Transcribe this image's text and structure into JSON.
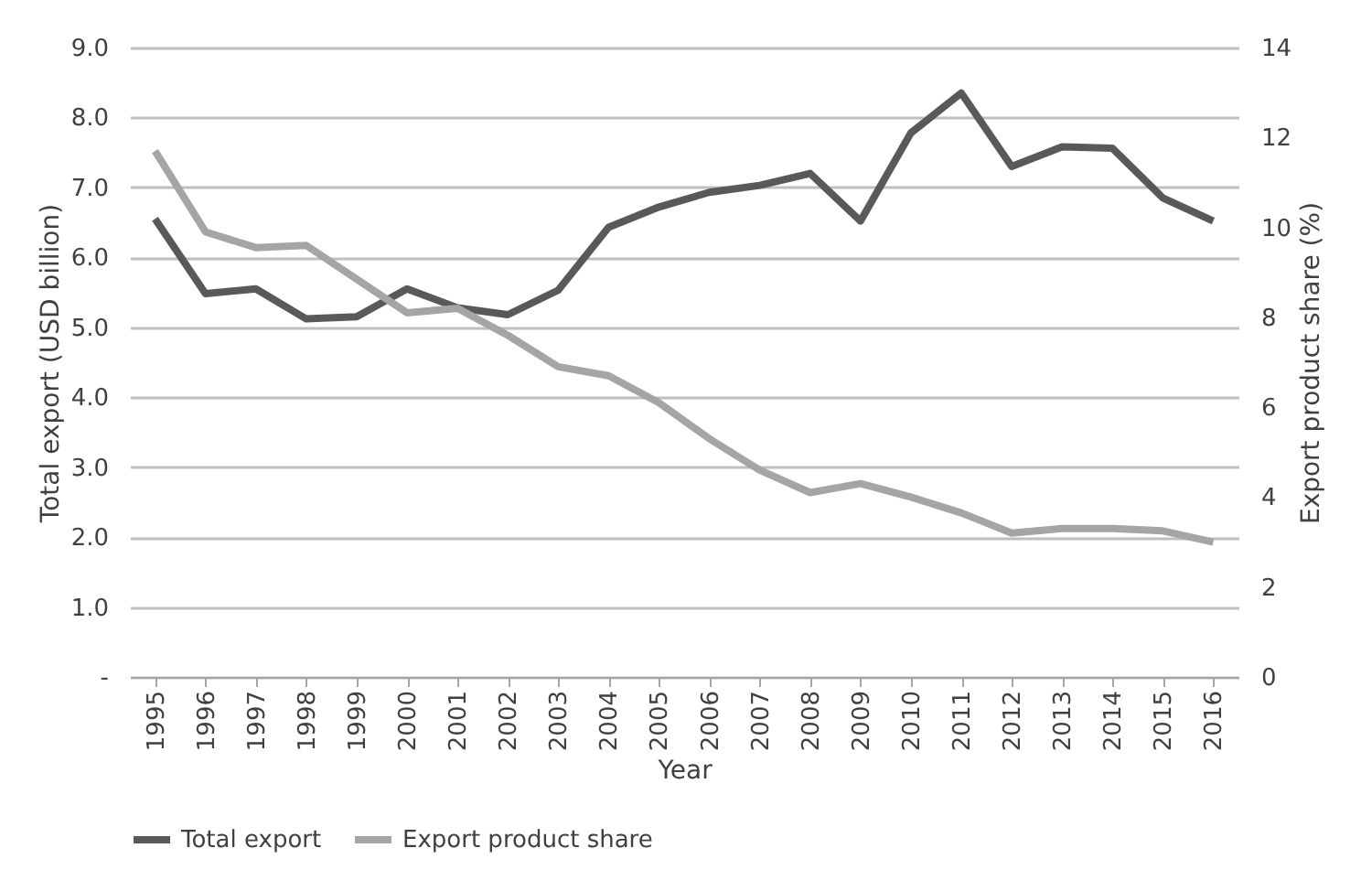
{
  "chart_data": {
    "type": "line",
    "xlabel": "Year",
    "ylabel": "Total export (USD billion)",
    "y2label": "Export product share (%)",
    "categories": [
      "1995",
      "1996",
      "1997",
      "1998",
      "1999",
      "2000",
      "2001",
      "2002",
      "2003",
      "2004",
      "2005",
      "2006",
      "2007",
      "2008",
      "2009",
      "2010",
      "2011",
      "2012",
      "2013",
      "2014",
      "2015",
      "2016"
    ],
    "series": [
      {
        "name": "Total export",
        "color": "#595959",
        "values": [
          6.55,
          5.48,
          5.55,
          5.12,
          5.15,
          5.55,
          5.28,
          5.18,
          5.53,
          6.43,
          6.72,
          6.93,
          7.03,
          7.2,
          6.52,
          7.78,
          8.35,
          7.3,
          7.58,
          7.56,
          6.85,
          6.52
        ]
      },
      {
        "name": "Export product share",
        "color": "#a5a5a5",
        "axis": "y2",
        "values": [
          11.7,
          9.9,
          9.55,
          9.6,
          8.85,
          8.1,
          8.2,
          7.6,
          6.9,
          6.7,
          6.1,
          5.3,
          4.6,
          4.1,
          4.3,
          4.0,
          3.65,
          3.2,
          3.3,
          3.3,
          3.25,
          3.0
        ]
      }
    ],
    "ylim": [
      0,
      9
    ],
    "yticks": [
      {
        "value": 0,
        "label": "-"
      },
      {
        "value": 1,
        "label": "1.0"
      },
      {
        "value": 2,
        "label": "2.0"
      },
      {
        "value": 3,
        "label": "3.0"
      },
      {
        "value": 4,
        "label": "4.0"
      },
      {
        "value": 5,
        "label": "5.0"
      },
      {
        "value": 6,
        "label": "6.0"
      },
      {
        "value": 7,
        "label": "7.0"
      },
      {
        "value": 8,
        "label": "8.0"
      },
      {
        "value": 9,
        "label": "9.0"
      }
    ],
    "y2lim": [
      0,
      14
    ],
    "y2ticks": [
      0,
      2,
      4,
      6,
      8,
      10,
      12,
      14
    ],
    "grid": "y",
    "legend": "bottom",
    "marker": "none",
    "line_style": "solid"
  }
}
